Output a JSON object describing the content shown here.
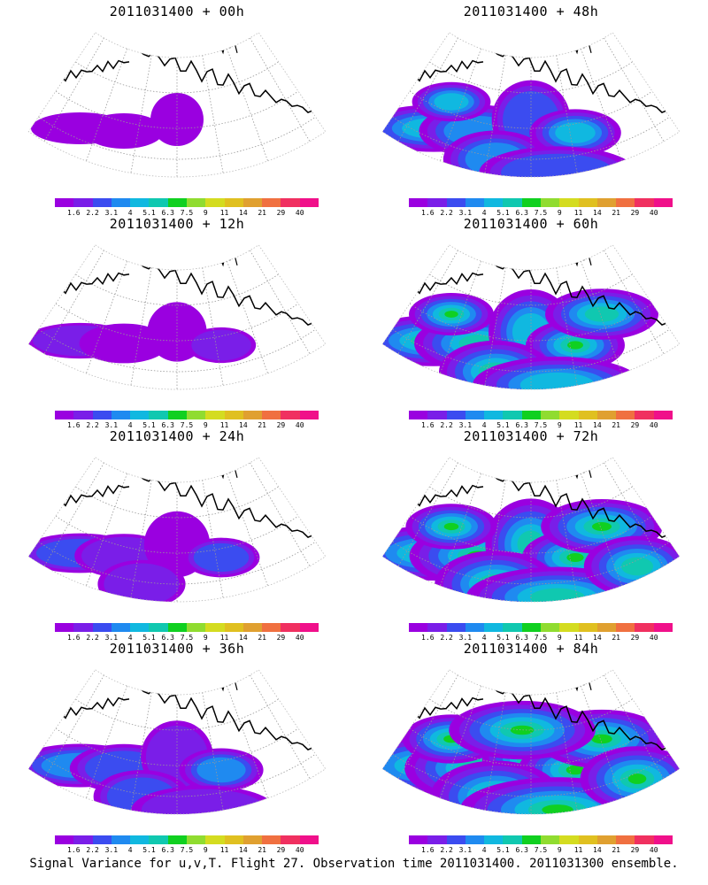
{
  "panels": [
    {
      "title": "2011031400 + 00h",
      "intensity": 0
    },
    {
      "title": "2011031400 + 48h",
      "intensity": 4
    },
    {
      "title": "2011031400 + 12h",
      "intensity": 1
    },
    {
      "title": "2011031400 + 60h",
      "intensity": 5
    },
    {
      "title": "2011031400 + 24h",
      "intensity": 2
    },
    {
      "title": "2011031400 + 72h",
      "intensity": 6
    },
    {
      "title": "2011031400 + 36h",
      "intensity": 3
    },
    {
      "title": "2011031400 + 84h",
      "intensity": 7
    }
  ],
  "colorbar": {
    "labels": [
      "1.6",
      "2.2",
      "3.1",
      "4",
      "5.1",
      "6.3",
      "7.5",
      "9",
      "11",
      "14",
      "21",
      "29",
      "40"
    ],
    "colors": [
      "#9a00e0",
      "#7a1ee8",
      "#3b4cf0",
      "#1f8af0",
      "#10b8e0",
      "#10c8b0",
      "#10d020",
      "#90dc30",
      "#d4dc20",
      "#e0c020",
      "#e0a030",
      "#f07040",
      "#f03060",
      "#f0108a"
    ]
  },
  "caption": "Signal Variance for u,v,T. Flight 27. Observation time 2011031400. 2011031300 ensemble."
}
